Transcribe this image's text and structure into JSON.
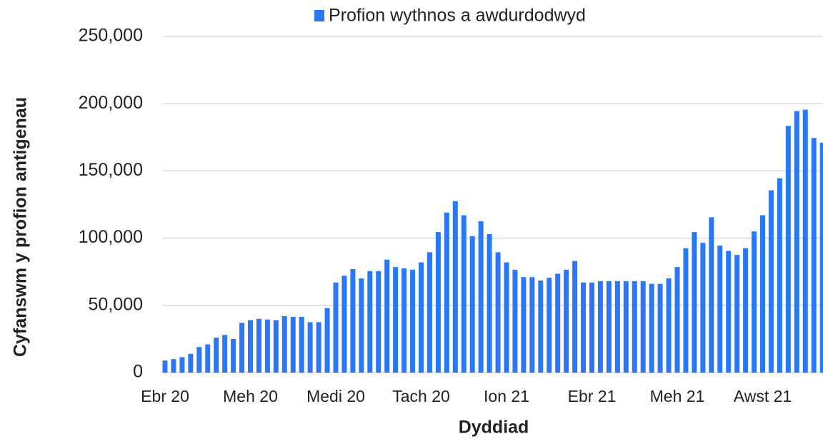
{
  "chart_data": {
    "type": "bar",
    "legend": "Profion wythnos a awdurdodwyd",
    "y_axis_label": "Cyfanswm y profion antigenau",
    "x_axis_label": "Dyddiad",
    "color": "#2a78f5",
    "grid": true,
    "legend_position": "top",
    "ylim": [
      0,
      250000
    ],
    "yticks": [
      0,
      {
        "value": 50000,
        "label": "50,000"
      },
      {
        "value": 100000,
        "label": "100,000"
      },
      {
        "value": 150000,
        "label": "150,000"
      },
      {
        "value": 200000,
        "label": "200,000"
      },
      {
        "value": 250000,
        "label": "250,000"
      }
    ],
    "categories": [
      "Ebr 20",
      null,
      null,
      null,
      null,
      null,
      null,
      null,
      null,
      null,
      "Meh 20",
      null,
      null,
      null,
      null,
      null,
      null,
      null,
      null,
      null,
      "Medi 20",
      null,
      null,
      null,
      null,
      null,
      null,
      null,
      null,
      null,
      "Tach 20",
      null,
      null,
      null,
      null,
      null,
      null,
      null,
      null,
      null,
      "Ion 21",
      null,
      null,
      null,
      null,
      null,
      null,
      null,
      null,
      null,
      "Ebr 21",
      null,
      null,
      null,
      null,
      null,
      null,
      null,
      null,
      null,
      "Meh 21",
      null,
      null,
      null,
      null,
      null,
      null,
      null,
      null,
      null,
      "Awst 21",
      null,
      null,
      null,
      null,
      null,
      null,
      null
    ],
    "values": [
      9000,
      10000,
      11500,
      14000,
      19000,
      21000,
      26000,
      28000,
      25000,
      37000,
      39000,
      40000,
      39500,
      39000,
      42000,
      41500,
      41500,
      37500,
      37500,
      48000,
      67000,
      72000,
      77000,
      70000,
      75500,
      75500,
      84000,
      78500,
      77500,
      76500,
      82000,
      89500,
      104500,
      119000,
      127500,
      117000,
      101500,
      112500,
      103000,
      89500,
      82000,
      76500,
      71000,
      71000,
      68500,
      70500,
      73500,
      76500,
      83000,
      67000,
      67000,
      68000,
      68000,
      68000,
      68000,
      68000,
      68000,
      66000,
      66000,
      70000,
      78500,
      92500,
      104500,
      96500,
      115500,
      94500,
      90500,
      87500,
      92500,
      105000,
      117000,
      135500,
      144500,
      183500,
      194500,
      195500,
      174500,
      171000
    ]
  }
}
